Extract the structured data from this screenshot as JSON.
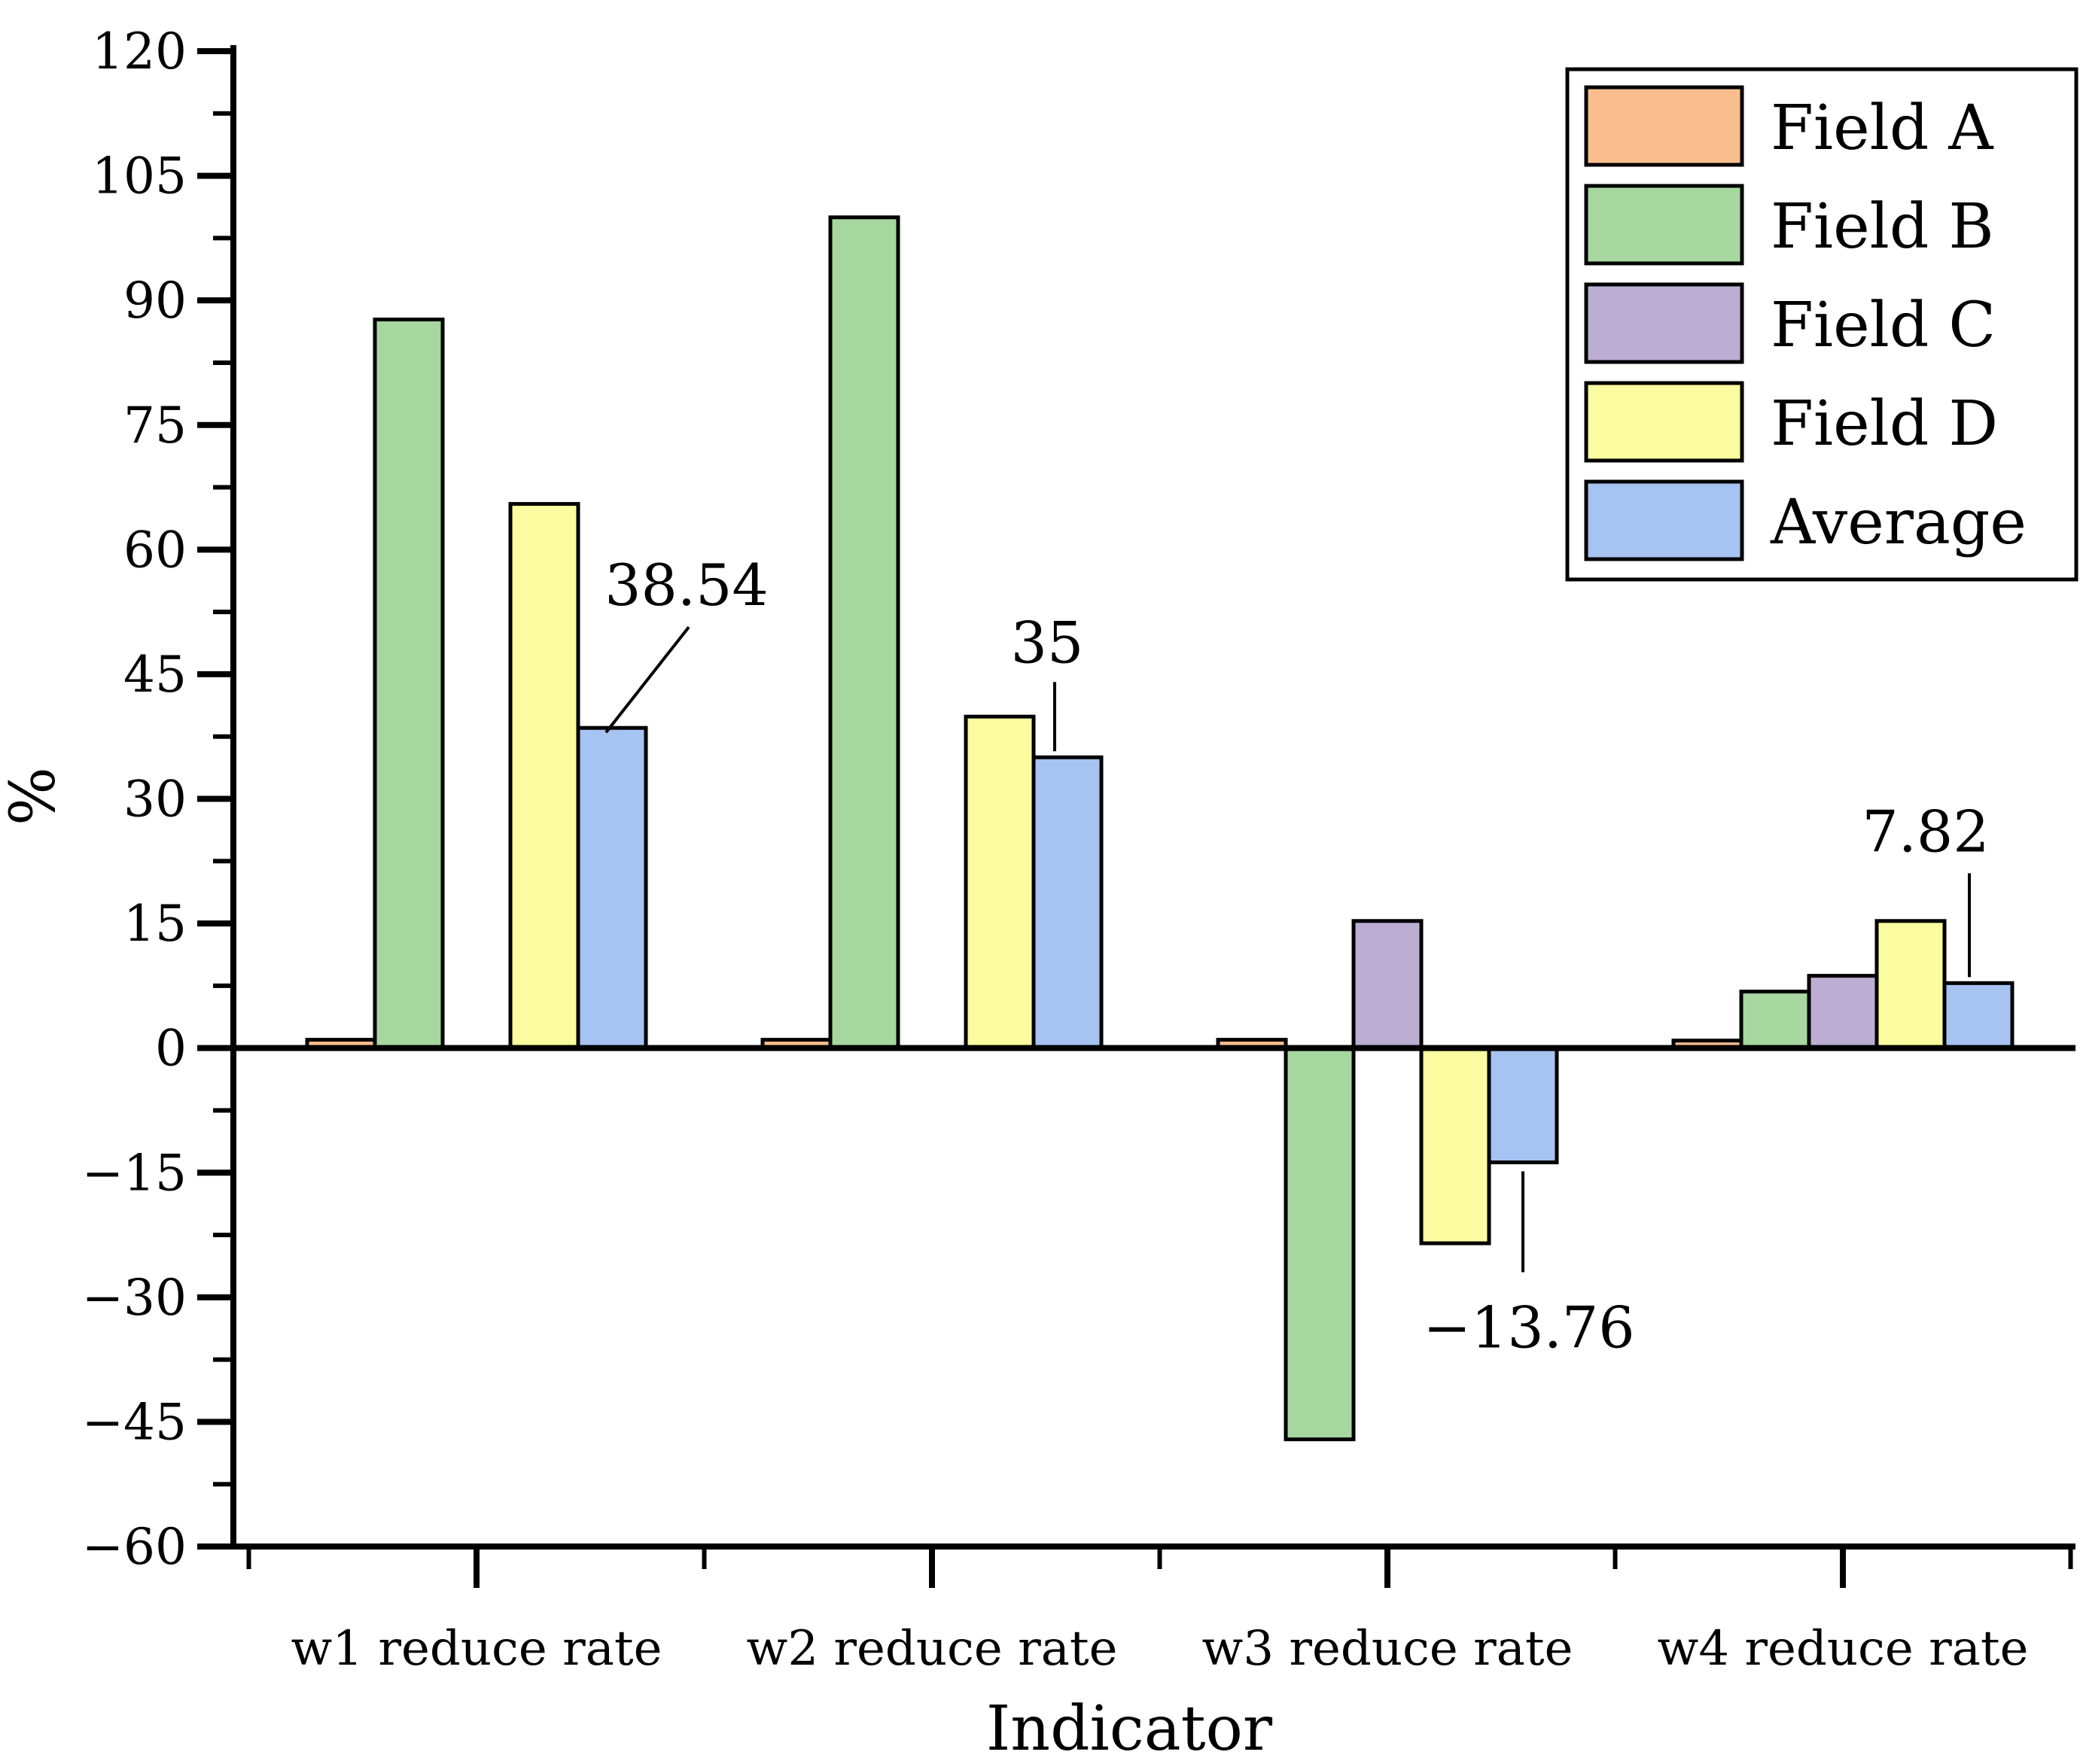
{
  "chart_data": {
    "type": "bar",
    "title": "",
    "xlabel": "Indicator",
    "ylabel": "%",
    "categories": [
      "w1 reduce rate",
      "w2 reduce rate",
      "w3 reduce rate",
      "w4 reduce rate"
    ],
    "series": [
      {
        "name": "Field A",
        "color": "#F9BE8E",
        "values": [
          1.0,
          1.0,
          1.0,
          0.9
        ]
      },
      {
        "name": "Field B",
        "color": "#A6D79F",
        "values": [
          87.7,
          100.0,
          -47.1,
          6.8
        ]
      },
      {
        "name": "Field C",
        "color": "#BCAED3",
        "values": [
          0.0,
          0.0,
          15.3,
          8.7
        ]
      },
      {
        "name": "Field D",
        "color": "#FBFB9F",
        "values": [
          65.5,
          39.9,
          -23.5,
          15.3
        ]
      },
      {
        "name": "Average",
        "color": "#A6C3F1",
        "values": [
          38.54,
          35.0,
          -13.76,
          7.82
        ]
      }
    ],
    "annotations": [
      {
        "category_index": 0,
        "series": "Average",
        "label": "38.54",
        "placement": "diag"
      },
      {
        "category_index": 1,
        "series": "Average",
        "label": "35",
        "placement": "above"
      },
      {
        "category_index": 2,
        "series": "Average",
        "label": "-13.76",
        "placement": "below"
      },
      {
        "category_index": 3,
        "series": "Average",
        "label": "7.82",
        "placement": "above-high"
      }
    ],
    "ylim": [
      -60,
      120
    ],
    "y_major_step": 15,
    "y_minor_step": 7.5,
    "y_tick_labels": [
      "120",
      "105",
      "90",
      "75",
      "60",
      "45",
      "30",
      "15",
      "0",
      "-15",
      "-30",
      "-45",
      "-60"
    ],
    "legend_position": "upper right",
    "grid": false,
    "bar_outline_color": "#000000",
    "axis_color": "#000000",
    "background": "#FFFFFF"
  }
}
